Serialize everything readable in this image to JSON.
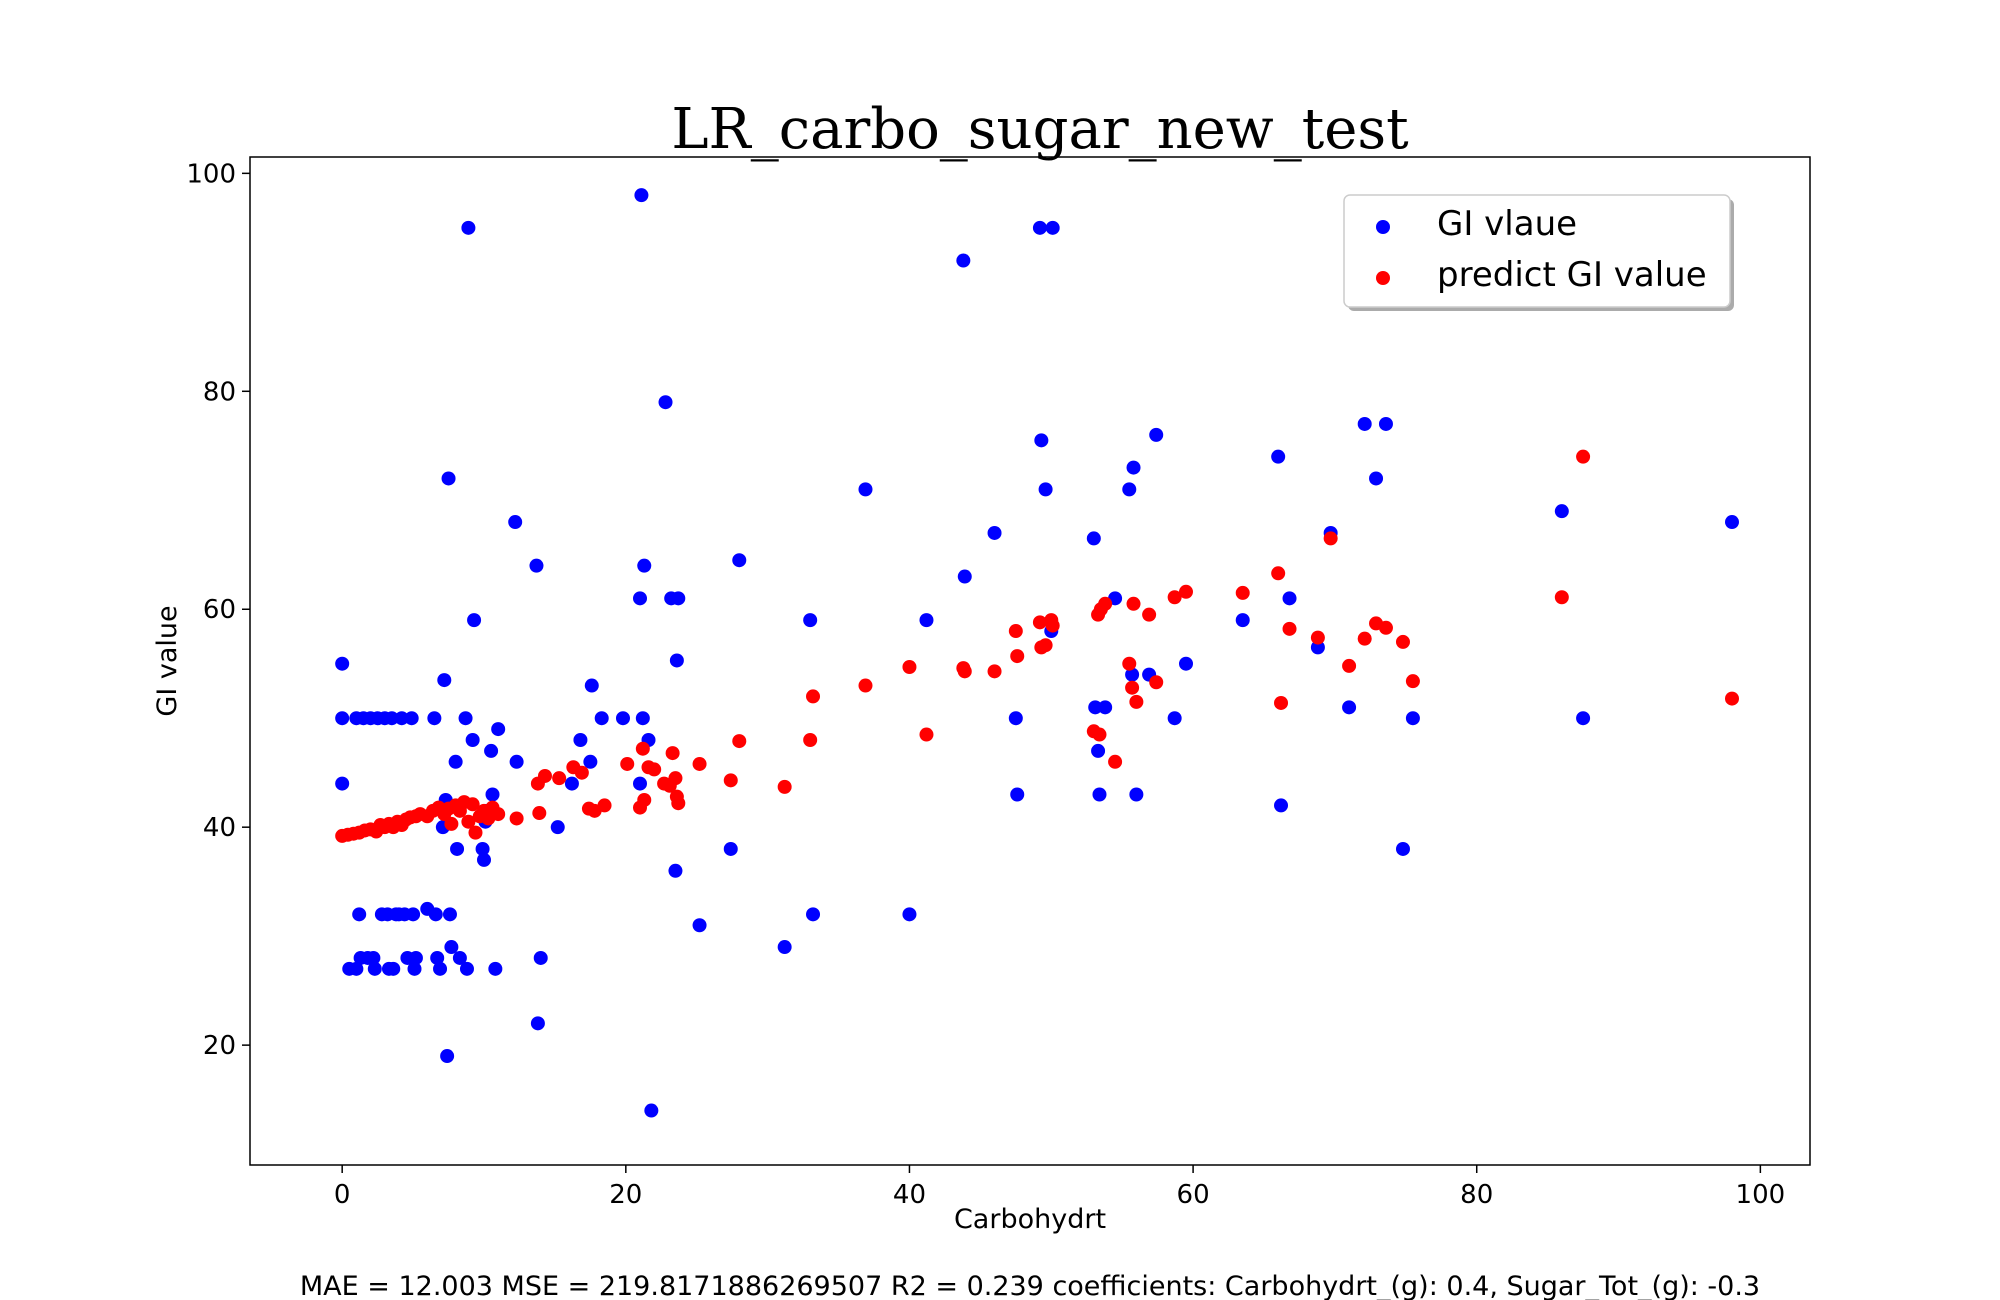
{
  "chart_data": {
    "type": "scatter",
    "title": "LR_carbo_sugar_new_test",
    "xlabel": "Carbohydrt",
    "ylabel": "GI value",
    "xlim": [
      -6.5,
      103.5
    ],
    "ylim": [
      9,
      101.5
    ],
    "xticks": [
      0,
      20,
      40,
      60,
      80,
      100
    ],
    "yticks": [
      20,
      40,
      60,
      80,
      100
    ],
    "grid": false,
    "legend_position": "top-right",
    "footer": "MAE = 12.003 MSE = 219.8171886269507 R2 = 0.239 coefficients: Carbohydrt_(g): 0.4, Sugar_Tot_(g): -0.3",
    "series": [
      {
        "name": "GI vlaue",
        "color": "#0000ff",
        "points": [
          [
            0,
            55
          ],
          [
            0,
            50
          ],
          [
            0,
            44
          ],
          [
            0.5,
            27
          ],
          [
            1,
            50
          ],
          [
            1,
            27
          ],
          [
            1.5,
            50
          ],
          [
            1.2,
            32
          ],
          [
            1.3,
            28
          ],
          [
            1.8,
            28
          ],
          [
            2,
            50
          ],
          [
            2.2,
            28
          ],
          [
            2.5,
            50
          ],
          [
            2.3,
            27
          ],
          [
            2.8,
            32
          ],
          [
            3,
            50
          ],
          [
            3.2,
            32
          ],
          [
            3.3,
            27
          ],
          [
            3.5,
            50
          ],
          [
            3.8,
            32
          ],
          [
            3.6,
            27
          ],
          [
            4,
            32
          ],
          [
            4.2,
            50
          ],
          [
            4.4,
            32
          ],
          [
            4.6,
            28
          ],
          [
            4.9,
            50
          ],
          [
            5,
            32
          ],
          [
            5.1,
            27
          ],
          [
            5.2,
            28
          ],
          [
            6,
            32.5
          ],
          [
            6.5,
            50
          ],
          [
            6.6,
            32
          ],
          [
            6.7,
            28
          ],
          [
            6.9,
            27
          ],
          [
            7.1,
            40
          ],
          [
            7.3,
            42.5
          ],
          [
            7.2,
            53.5
          ],
          [
            7.4,
            19
          ],
          [
            7.5,
            72
          ],
          [
            7.6,
            32
          ],
          [
            7.7,
            29
          ],
          [
            8,
            46
          ],
          [
            8.1,
            38
          ],
          [
            8.3,
            28
          ],
          [
            8.7,
            50
          ],
          [
            8.8,
            27
          ],
          [
            8.9,
            95
          ],
          [
            9.2,
            48
          ],
          [
            9.3,
            59
          ],
          [
            9.9,
            38
          ],
          [
            10,
            37
          ],
          [
            10.1,
            40.5
          ],
          [
            10.2,
            41.5
          ],
          [
            10.5,
            47
          ],
          [
            10.6,
            43
          ],
          [
            10.8,
            27
          ],
          [
            11,
            49
          ],
          [
            12.2,
            68
          ],
          [
            12.3,
            46
          ],
          [
            13.7,
            64
          ],
          [
            13.8,
            22
          ],
          [
            14,
            28
          ],
          [
            15.2,
            40
          ],
          [
            16.2,
            44
          ],
          [
            16.8,
            48
          ],
          [
            17.5,
            46
          ],
          [
            17.6,
            53
          ],
          [
            18.3,
            50
          ],
          [
            19.8,
            50
          ],
          [
            21,
            61
          ],
          [
            21,
            44
          ],
          [
            21.1,
            98
          ],
          [
            21.2,
            50
          ],
          [
            21.3,
            64
          ],
          [
            21.6,
            48
          ],
          [
            21.8,
            14
          ],
          [
            22.8,
            79
          ],
          [
            23.2,
            61
          ],
          [
            23.5,
            36
          ],
          [
            23.6,
            55.3
          ],
          [
            23.7,
            61
          ],
          [
            25.2,
            31
          ],
          [
            27.4,
            38
          ],
          [
            28,
            64.5
          ],
          [
            31.2,
            29
          ],
          [
            33,
            59
          ],
          [
            33.2,
            32
          ],
          [
            36.9,
            71
          ],
          [
            40,
            32
          ],
          [
            41.2,
            59
          ],
          [
            43.8,
            92
          ],
          [
            43.9,
            63
          ],
          [
            46,
            67
          ],
          [
            47.5,
            50
          ],
          [
            47.6,
            43
          ],
          [
            49.2,
            95
          ],
          [
            49.3,
            75.5
          ],
          [
            49.6,
            71
          ],
          [
            50,
            58
          ],
          [
            50.1,
            95
          ],
          [
            53,
            66.5
          ],
          [
            53.1,
            51
          ],
          [
            53.3,
            47
          ],
          [
            53.4,
            43
          ],
          [
            53.8,
            51
          ],
          [
            54.5,
            61
          ],
          [
            55.5,
            71
          ],
          [
            55.8,
            73
          ],
          [
            56,
            43
          ],
          [
            55.7,
            54
          ],
          [
            56.9,
            54
          ],
          [
            57.4,
            76
          ],
          [
            58.7,
            50
          ],
          [
            59.5,
            55
          ],
          [
            63.5,
            59
          ],
          [
            66,
            74
          ],
          [
            66.2,
            42
          ],
          [
            66.8,
            61
          ],
          [
            68.8,
            56.5
          ],
          [
            69.7,
            67
          ],
          [
            71,
            51
          ],
          [
            72.1,
            77
          ],
          [
            72.9,
            72
          ],
          [
            73.6,
            77
          ],
          [
            74.8,
            38
          ],
          [
            75.5,
            50
          ],
          [
            86,
            69
          ],
          [
            87.5,
            50
          ],
          [
            98,
            68
          ]
        ]
      },
      {
        "name": "predict GI value",
        "color": "#ff0000",
        "points": [
          [
            0,
            39.2
          ],
          [
            0.4,
            39.3
          ],
          [
            0.8,
            39.4
          ],
          [
            1.2,
            39.5
          ],
          [
            1.6,
            39.7
          ],
          [
            2,
            39.8
          ],
          [
            2.4,
            39.6
          ],
          [
            2.7,
            40.2
          ],
          [
            3,
            40
          ],
          [
            3.3,
            40.3
          ],
          [
            3.6,
            40
          ],
          [
            3.9,
            40.5
          ],
          [
            4.2,
            40.2
          ],
          [
            4.5,
            40.7
          ],
          [
            4.8,
            40.9
          ],
          [
            5.2,
            41
          ],
          [
            5.5,
            41.2
          ],
          [
            6,
            41
          ],
          [
            6.4,
            41.5
          ],
          [
            6.8,
            41.8
          ],
          [
            7.2,
            41.2
          ],
          [
            7.5,
            41.7
          ],
          [
            7.7,
            40.3
          ],
          [
            8,
            42
          ],
          [
            8.3,
            41.5
          ],
          [
            8.6,
            42.3
          ],
          [
            8.9,
            40.5
          ],
          [
            9.2,
            42.1
          ],
          [
            9.4,
            39.5
          ],
          [
            9.7,
            41
          ],
          [
            10,
            41.5
          ],
          [
            10.3,
            40.8
          ],
          [
            10.6,
            41.8
          ],
          [
            11,
            41.2
          ],
          [
            12.3,
            40.8
          ],
          [
            13.8,
            44
          ],
          [
            14.3,
            44.7
          ],
          [
            13.9,
            41.3
          ],
          [
            15.3,
            44.5
          ],
          [
            16.3,
            45.5
          ],
          [
            16.9,
            45
          ],
          [
            17.4,
            41.7
          ],
          [
            17.8,
            41.5
          ],
          [
            18.5,
            42
          ],
          [
            20.1,
            45.8
          ],
          [
            21,
            41.8
          ],
          [
            21.2,
            47.2
          ],
          [
            21.3,
            42.5
          ],
          [
            21.6,
            45.5
          ],
          [
            22,
            45.3
          ],
          [
            22.7,
            44
          ],
          [
            23.1,
            43.8
          ],
          [
            23.3,
            46.8
          ],
          [
            23.5,
            44.5
          ],
          [
            23.6,
            42.8
          ],
          [
            23.7,
            42.2
          ],
          [
            25.2,
            45.8
          ],
          [
            27.4,
            44.3
          ],
          [
            28,
            47.9
          ],
          [
            31.2,
            43.7
          ],
          [
            33,
            48
          ],
          [
            33.2,
            52
          ],
          [
            36.9,
            53
          ],
          [
            40,
            54.7
          ],
          [
            41.2,
            48.5
          ],
          [
            43.8,
            54.6
          ],
          [
            43.9,
            54.3
          ],
          [
            46,
            54.3
          ],
          [
            47.5,
            58
          ],
          [
            47.6,
            55.7
          ],
          [
            49.2,
            58.8
          ],
          [
            49.3,
            56.5
          ],
          [
            49.6,
            56.7
          ],
          [
            50,
            59
          ],
          [
            50.1,
            58.5
          ],
          [
            53,
            48.8
          ],
          [
            53.3,
            59.5
          ],
          [
            53.4,
            48.5
          ],
          [
            53.5,
            60
          ],
          [
            53.8,
            60.5
          ],
          [
            54.5,
            46
          ],
          [
            55.5,
            55
          ],
          [
            55.7,
            52.8
          ],
          [
            55.8,
            60.5
          ],
          [
            56,
            51.5
          ],
          [
            56.9,
            59.5
          ],
          [
            57.4,
            53.3
          ],
          [
            58.7,
            61.1
          ],
          [
            59.5,
            61.6
          ],
          [
            63.5,
            61.5
          ],
          [
            66,
            63.3
          ],
          [
            66.2,
            51.4
          ],
          [
            66.8,
            58.2
          ],
          [
            68.8,
            57.4
          ],
          [
            69.7,
            66.5
          ],
          [
            71,
            54.8
          ],
          [
            72.1,
            57.3
          ],
          [
            72.9,
            58.7
          ],
          [
            73.6,
            58.3
          ],
          [
            74.8,
            57
          ],
          [
            75.5,
            53.4
          ],
          [
            86,
            61.1
          ],
          [
            87.5,
            74
          ],
          [
            98,
            51.8
          ]
        ]
      }
    ]
  }
}
